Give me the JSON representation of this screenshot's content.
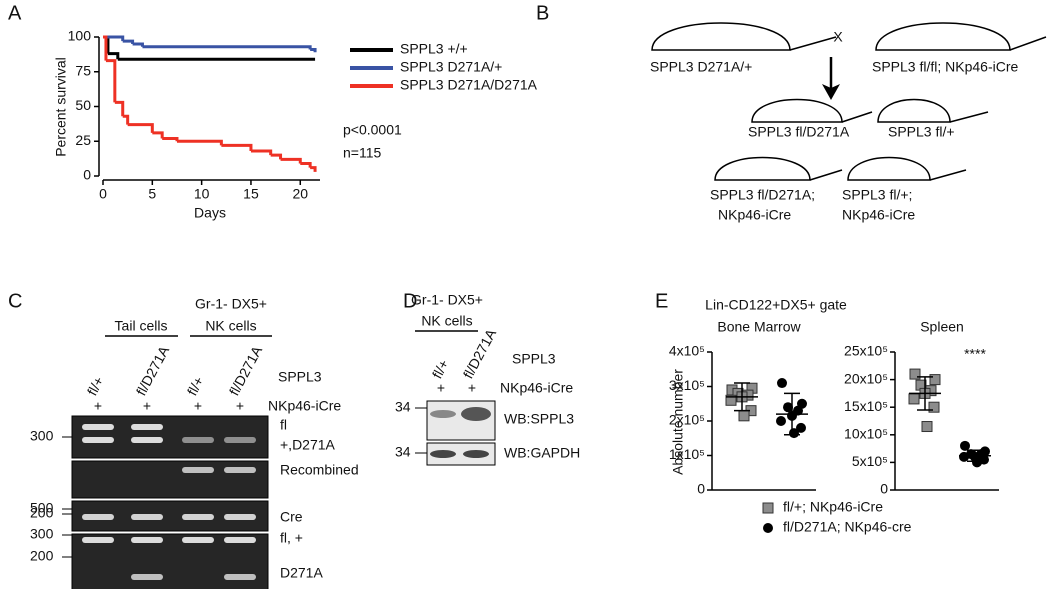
{
  "panel_labels": [
    "A",
    "B",
    "C",
    "D",
    "E"
  ],
  "chart_data": [
    {
      "type": "line",
      "step": true,
      "xlabel": "Days",
      "ylabel": "Percent survival",
      "xlim": [
        0,
        22
      ],
      "xticks": [
        0,
        5,
        10,
        15,
        20
      ],
      "ylim": [
        0,
        100
      ],
      "yticks": [
        0,
        25,
        50,
        75,
        100
      ],
      "series": [
        {
          "name": "SPPL3 +/+",
          "color": "#000000",
          "x": [
            0,
            0.5,
            1.5,
            21.5
          ],
          "values": [
            100,
            88,
            84,
            84
          ]
        },
        {
          "name": "SPPL3 D271A/+",
          "color": "#3953a4",
          "x": [
            0,
            2,
            3,
            4,
            21,
            21.5
          ],
          "values": [
            100,
            97,
            95,
            93,
            91,
            89
          ]
        },
        {
          "name": "SPPL3 D271A/D271A",
          "color": "#ee3124",
          "x": [
            0,
            0.3,
            1.2,
            2,
            2.5,
            5,
            6,
            7.5,
            12,
            15,
            17,
            18,
            20,
            21,
            21.5
          ],
          "values": [
            100,
            83,
            53,
            43,
            37,
            31,
            27,
            25,
            22,
            18,
            15,
            12,
            9,
            6,
            3
          ]
        }
      ],
      "annotations": [
        "p<0.0001",
        "n=115"
      ]
    },
    {
      "type": "scatter",
      "group_title": "Lin-CD122+DX5+ gate",
      "title": "Bone Marrow",
      "ylabel": "Absolute number",
      "ylim": [
        0,
        400000
      ],
      "yticks": [
        0,
        {
          "value": 100000,
          "label": "1x10⁵"
        },
        {
          "value": 200000,
          "label": "2x10⁵"
        },
        {
          "value": 300000,
          "label": "3x10⁵"
        },
        {
          "value": 400000,
          "label": "4x10⁵"
        }
      ],
      "series": [
        {
          "name": "fl/+; NKp46-iCre",
          "marker": "square",
          "color": "#8c8c8c",
          "values": [
            290000,
            295000,
            280000,
            275000,
            270000,
            260000,
            230000,
            215000
          ],
          "mean": 270000,
          "sd": 40000
        },
        {
          "name": "fl/D271A; NKp46-cre",
          "marker": "circle",
          "color": "#000000",
          "values": [
            310000,
            250000,
            240000,
            230000,
            215000,
            200000,
            180000,
            165000
          ],
          "mean": 220000,
          "sd": 60000
        }
      ]
    },
    {
      "type": "scatter",
      "title": "Spleen",
      "annotation": "****",
      "ylim": [
        0,
        2500000
      ],
      "yticks": [
        0,
        {
          "value": 500000,
          "label": "5x10⁵"
        },
        {
          "value": 1000000,
          "label": "10x10⁵"
        },
        {
          "value": 1500000,
          "label": "15x10⁵"
        },
        {
          "value": 2000000,
          "label": "20x10⁵"
        },
        {
          "value": 2500000,
          "label": "25x10⁵"
        }
      ],
      "series": [
        {
          "name": "fl/+; NKp46-iCre",
          "marker": "square",
          "color": "#8c8c8c",
          "values": [
            2100000,
            2000000,
            1900000,
            1800000,
            1750000,
            1650000,
            1500000,
            1150000
          ],
          "mean": 1750000,
          "sd": 300000
        },
        {
          "name": "fl/D271A; NKp46-cre",
          "marker": "circle",
          "color": "#000000",
          "values": [
            800000,
            700000,
            650000,
            650000,
            600000,
            600000,
            550000,
            500000
          ],
          "mean": 620000,
          "sd": 100000
        }
      ]
    }
  ],
  "diagram": {
    "cross_symbol": "X",
    "parents": [
      "SPPL3 D271A/+",
      "SPPL3 fl/fl; NKp46-iCre"
    ],
    "f1": [
      "SPPL3 fl/D271A",
      "SPPL3 fl/+"
    ],
    "f2": [
      [
        "SPPL3 fl/D271A;",
        "NKp46-iCre"
      ],
      [
        "SPPL3 fl/+;",
        "NKp46-iCre"
      ]
    ]
  },
  "gel": {
    "groups": [
      "Tail cells",
      "Gr-1- DX5+",
      "NK cells"
    ],
    "lanes": [
      "fl/+",
      "fl/D271A",
      "fl/+",
      "fl/D271A"
    ],
    "cre": [
      "+",
      "+",
      "+",
      "+"
    ],
    "row_labels": [
      "SPPL3",
      "NKp46-iCre"
    ],
    "bands": [
      "fl",
      "+,D271A",
      "Recombined",
      "Cre",
      "fl, +",
      "D271A"
    ],
    "markers": [
      "300",
      "500",
      "200",
      "300",
      "200"
    ]
  },
  "blot": {
    "header": [
      "Gr-1- DX5+",
      "NK cells"
    ],
    "lanes": [
      "fl/+",
      "fl/D271A"
    ],
    "cre": [
      "+",
      "+"
    ],
    "row_labels": [
      "SPPL3",
      "NKp46-iCre"
    ],
    "probes": [
      "WB:SPPL3",
      "WB:GAPDH"
    ],
    "markers": [
      "34",
      "34"
    ]
  }
}
